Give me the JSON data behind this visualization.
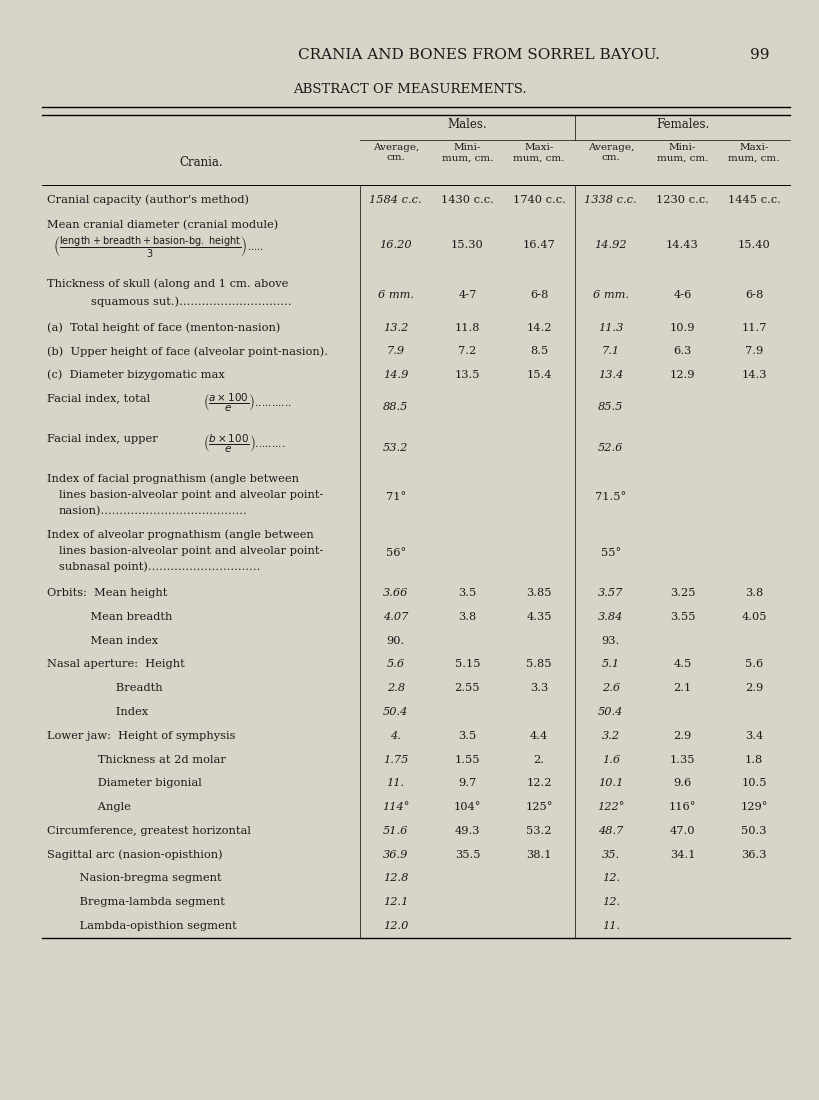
{
  "page_title": "CRANIA AND BONES FROM SORREL BAYOU.",
  "page_number": "99",
  "table_title": "ABSTRACT OF MEASUREMENTS.",
  "bg_color": "#d8d4c8",
  "text_color": "#1a1a1a",
  "group_headers": [
    "Males.",
    "Females."
  ],
  "rows": [
    {
      "label": "Cranial capacity (author's method)",
      "label_type": "normal",
      "italic_avg": true,
      "m_avg": "1584 c.c.",
      "m_min": "1430 c.c.",
      "m_max": "1740 c.c.",
      "f_avg": "1338 c.c.",
      "f_min": "1230 c.c.",
      "f_max": "1445 c.c."
    },
    {
      "label": "mean_cranial_diameter",
      "label_type": "special",
      "italic_avg": true,
      "m_avg": "16.20",
      "m_min": "15.30",
      "m_max": "16.47",
      "f_avg": "14.92",
      "f_min": "14.43",
      "f_max": "15.40"
    },
    {
      "label": "thickness_skull",
      "label_type": "special",
      "italic_avg": true,
      "m_avg": "6 mm.",
      "m_min": "4-7",
      "m_max": "6-8",
      "f_avg": "6 mm.",
      "f_min": "4-6",
      "f_max": "6-8"
    },
    {
      "label": "(a)  Total height of face (menton-nasion)",
      "label_type": "normal",
      "italic_avg": true,
      "m_avg": "13.2",
      "m_min": "11.8",
      "m_max": "14.2",
      "f_avg": "11.3",
      "f_min": "10.9",
      "f_max": "11.7"
    },
    {
      "label": "(b)  Upper height of face (alveolar point-nasion).",
      "label_type": "normal",
      "italic_avg": true,
      "m_avg": "7.9",
      "m_min": "7.2",
      "m_max": "8.5",
      "f_avg": "7.1",
      "f_min": "6.3",
      "f_max": "7.9"
    },
    {
      "label": "(c)  Diameter bizygomatic max",
      "label_type": "normal",
      "italic_avg": true,
      "m_avg": "14.9",
      "m_min": "13.5",
      "m_max": "15.4",
      "f_avg": "13.4",
      "f_min": "12.9",
      "f_max": "14.3"
    },
    {
      "label": "facial_index_total",
      "label_type": "special",
      "italic_avg": true,
      "m_avg": "88.5",
      "m_min": "",
      "m_max": "",
      "f_avg": "85.5",
      "f_min": "",
      "f_max": ""
    },
    {
      "label": "facial_index_upper",
      "label_type": "special",
      "italic_avg": true,
      "m_avg": "53.2",
      "m_min": "",
      "m_max": "",
      "f_avg": "52.6",
      "f_min": "",
      "f_max": ""
    },
    {
      "label": "facial_prognathism",
      "label_type": "special",
      "italic_avg": false,
      "m_avg": "71°",
      "m_min": "",
      "m_max": "",
      "f_avg": "71.5°",
      "f_min": "",
      "f_max": ""
    },
    {
      "label": "alveolar_prognathism",
      "label_type": "special",
      "italic_avg": false,
      "m_avg": "56°",
      "m_min": "",
      "m_max": "",
      "f_avg": "55°",
      "f_min": "",
      "f_max": ""
    },
    {
      "label": "Orbits:  Mean height",
      "label_type": "normal",
      "italic_avg": true,
      "m_avg": "3.66",
      "m_min": "3.5",
      "m_max": "3.85",
      "f_avg": "3.57",
      "f_min": "3.25",
      "f_max": "3.8"
    },
    {
      "label": "            Mean breadth",
      "label_type": "normal",
      "italic_avg": true,
      "m_avg": "4.07",
      "m_min": "3.8",
      "m_max": "4.35",
      "f_avg": "3.84",
      "f_min": "3.55",
      "f_max": "4.05"
    },
    {
      "label": "            Mean index",
      "label_type": "normal",
      "italic_avg": false,
      "m_avg": "90.",
      "m_min": "",
      "m_max": "",
      "f_avg": "93.",
      "f_min": "",
      "f_max": ""
    },
    {
      "label": "Nasal aperture:  Height",
      "label_type": "normal",
      "italic_avg": true,
      "m_avg": "5.6",
      "m_min": "5.15",
      "m_max": "5.85",
      "f_avg": "5.1",
      "f_min": "4.5",
      "f_max": "5.6"
    },
    {
      "label": "                   Breadth",
      "label_type": "normal",
      "italic_avg": true,
      "m_avg": "2.8",
      "m_min": "2.55",
      "m_max": "3.3",
      "f_avg": "2.6",
      "f_min": "2.1",
      "f_max": "2.9"
    },
    {
      "label": "                   Index",
      "label_type": "normal",
      "italic_avg": true,
      "m_avg": "50.4",
      "m_min": "",
      "m_max": "",
      "f_avg": "50.4",
      "f_min": "",
      "f_max": ""
    },
    {
      "label": "Lower jaw:  Height of symphysis",
      "label_type": "normal",
      "italic_avg": true,
      "m_avg": "4.",
      "m_min": "3.5",
      "m_max": "4.4",
      "f_avg": "3.2",
      "f_min": "2.9",
      "f_max": "3.4"
    },
    {
      "label": "              Thickness at 2d molar",
      "label_type": "normal",
      "italic_avg": true,
      "m_avg": "1.75",
      "m_min": "1.55",
      "m_max": "2.",
      "f_avg": "1.6",
      "f_min": "1.35",
      "f_max": "1.8"
    },
    {
      "label": "              Diameter bigonial",
      "label_type": "normal",
      "italic_avg": true,
      "m_avg": "11.",
      "m_min": "9.7",
      "m_max": "12.2",
      "f_avg": "10.1",
      "f_min": "9.6",
      "f_max": "10.5"
    },
    {
      "label": "              Angle",
      "label_type": "normal",
      "italic_avg": true,
      "m_avg": "114°",
      "m_min": "104°",
      "m_max": "125°",
      "f_avg": "122°",
      "f_min": "116°",
      "f_max": "129°"
    },
    {
      "label": "Circumference, greatest horizontal",
      "label_type": "normal",
      "italic_avg": true,
      "m_avg": "51.6",
      "m_min": "49.3",
      "m_max": "53.2",
      "f_avg": "48.7",
      "f_min": "47.0",
      "f_max": "50.3"
    },
    {
      "label": "Sagittal arc (nasion-opisthion)",
      "label_type": "normal",
      "italic_avg": true,
      "m_avg": "36.9",
      "m_min": "35.5",
      "m_max": "38.1",
      "f_avg": "35.",
      "f_min": "34.1",
      "f_max": "36.3"
    },
    {
      "label": "         Nasion-bregma segment",
      "label_type": "normal",
      "italic_avg": true,
      "m_avg": "12.8",
      "m_min": "",
      "m_max": "",
      "f_avg": "12.",
      "f_min": "",
      "f_max": ""
    },
    {
      "label": "         Bregma-lambda segment",
      "label_type": "normal",
      "italic_avg": true,
      "m_avg": "12.1",
      "m_min": "",
      "m_max": "",
      "f_avg": "12.",
      "f_min": "",
      "f_max": ""
    },
    {
      "label": "         Lambda-opisthion segment",
      "label_type": "normal",
      "italic_avg": true,
      "m_avg": "12.0",
      "m_min": "",
      "m_max": "",
      "f_avg": "11.",
      "f_min": "",
      "f_max": ""
    }
  ]
}
